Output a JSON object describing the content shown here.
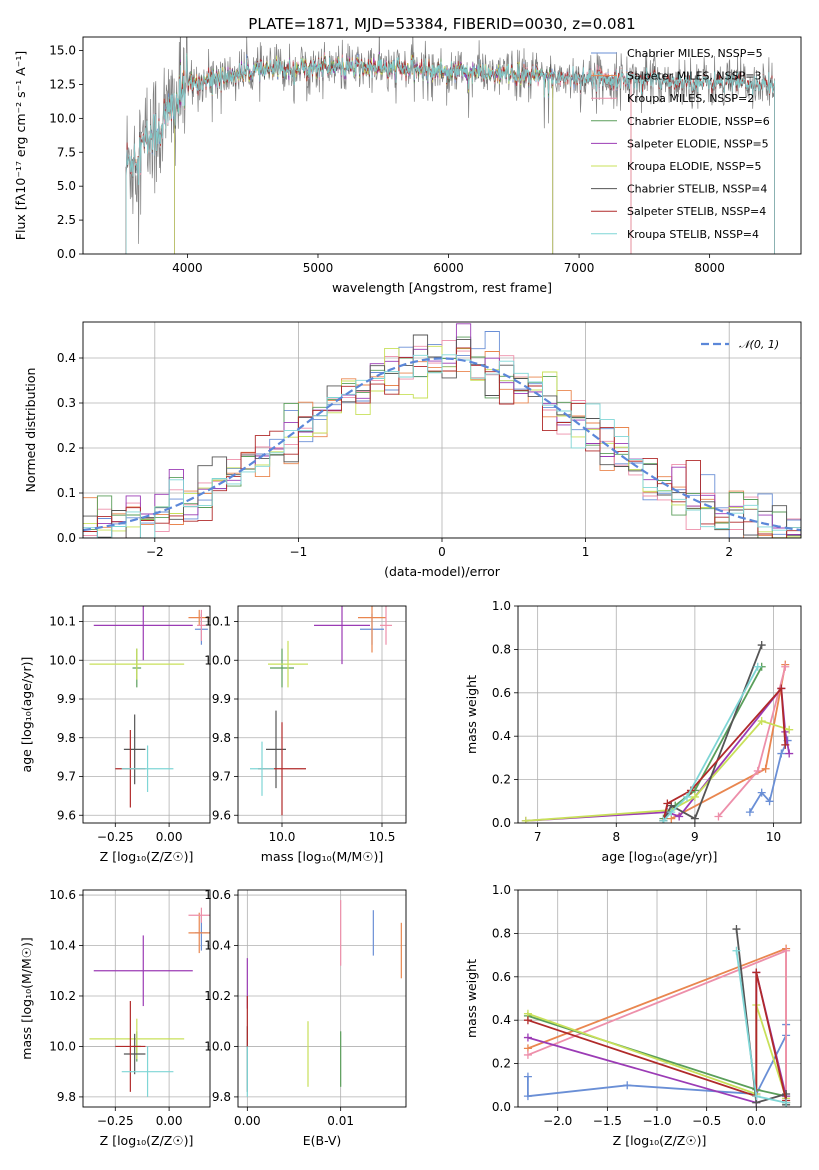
{
  "chart_data": [
    {
      "id": "spectrum",
      "type": "line",
      "title": "PLATE=1871, MJD=53384, FIBERID=0030, z=0.081",
      "xlabel": "wavelength [Angstrom, rest frame]",
      "ylabel": "Flux [f$_\\lambda$10$^{-17}$ erg cm$^{-2}$ s$^{-1}$ A$^{-1}$]",
      "ylabel_display": "Flux [fλ10⁻¹⁷ erg cm⁻² s⁻¹ A⁻¹]",
      "xlim": [
        3200,
        8700
      ],
      "ylim": [
        0,
        16
      ],
      "xticks": [
        4000,
        5000,
        6000,
        7000,
        8000
      ],
      "yticks": [
        0.0,
        2.5,
        5.0,
        7.5,
        10.0,
        12.5,
        15.0
      ],
      "grid": false,
      "legend_position": "right",
      "series": [
        {
          "name": "Chabrier MILES, N$_{SSP}$=5",
          "display": "Chabrier MILES, NSSP=5",
          "color": "#6a8fd6",
          "wmin": 3530,
          "wmax": 7400
        },
        {
          "name": "Salpeter MILES, N$_{SSP}$=3",
          "display": "Salpeter MILES, NSSP=3",
          "color": "#e9864f",
          "wmin": 3530,
          "wmax": 7400
        },
        {
          "name": "Kroupa MILES, N$_{SSP}$=2",
          "display": "Kroupa MILES, NSSP=2",
          "color": "#ed8faa",
          "wmin": 3530,
          "wmax": 7400
        },
        {
          "name": "Chabrier ELODIE, N$_{SSP}$=6",
          "display": "Chabrier ELODIE, NSSP=6",
          "color": "#5a9e5a",
          "wmin": 3900,
          "wmax": 6800
        },
        {
          "name": "Salpeter ELODIE, N$_{SSP}$=5",
          "display": "Salpeter ELODIE, NSSP=5",
          "color": "#9b3bb5",
          "wmin": 3900,
          "wmax": 6800
        },
        {
          "name": "Kroupa ELODIE, N$_{SSP}$=5",
          "display": "Kroupa ELODIE, NSSP=5",
          "color": "#c8e05a",
          "wmin": 3900,
          "wmax": 6800
        },
        {
          "name": "Chabrier STELIB, N$_{SSP}$=4",
          "display": "Chabrier STELIB, NSSP=4",
          "color": "#555555",
          "wmin": 3500,
          "wmax": 8500
        },
        {
          "name": "Salpeter STELIB, N$_{SSP}$=4",
          "display": "Salpeter STELIB, NSSP=4",
          "color": "#b02a2a",
          "wmin": 3500,
          "wmax": 8500
        },
        {
          "name": "Kroupa STELIB, N$_{SSP}$=4",
          "display": "Kroupa STELIB, NSSP=4",
          "color": "#7fd6d6",
          "wmin": 3500,
          "wmax": 8500
        }
      ],
      "data_color": "#808080",
      "continuum": {
        "x": [
          3530,
          3800,
          4000,
          4500,
          5000,
          5500,
          6000,
          6500,
          7000,
          7400,
          8500
        ],
        "y": [
          6.5,
          9.5,
          12.5,
          13.5,
          13.8,
          13.7,
          13.5,
          13.2,
          13.0,
          12.9,
          12.5
        ]
      }
    },
    {
      "id": "residuals",
      "type": "line",
      "xlabel": "(data-model)/error",
      "ylabel": "Normed distribution",
      "xlim": [
        -2.5,
        2.5
      ],
      "ylim": [
        0,
        0.48
      ],
      "xticks": [
        -2,
        -1,
        0,
        1,
        2
      ],
      "yticks": [
        0.0,
        0.1,
        0.2,
        0.3,
        0.4
      ],
      "grid": true,
      "legend": "$\\mathcal{N}(0,1)$",
      "legend_display": "𝒩(0, 1)",
      "legend_position": "top-right",
      "gauss_color": "#5b87d9",
      "bin_width": 0.1
    },
    {
      "id": "age-vs-Z",
      "type": "scatter",
      "xlabel": "Z [log$_{10}$(Z/Z$_\\odot$)]",
      "xlabel_display": "Z [log₁₀(Z/Z☉)]",
      "ylabel": "age  [log$_{10}$(age/yr)]",
      "ylabel_display": "age  [log₁₀(age/yr)]",
      "xlim": [
        -0.4,
        0.19
      ],
      "ylim": [
        9.58,
        10.14
      ],
      "xticks": [
        -0.25,
        0.0
      ],
      "xticklabels": [
        "−0.25",
        "0.00"
      ],
      "yticks": [
        9.6,
        9.7,
        9.8,
        9.9,
        10.0,
        10.1
      ],
      "grid": true,
      "points": [
        {
          "color": "#6a8fd6",
          "x": 0.15,
          "xerr": 0.03,
          "y": 10.08,
          "yerr": 0.04
        },
        {
          "color": "#e9864f",
          "x": 0.14,
          "xerr": 0.05,
          "y": 10.11,
          "yerr": 0.02
        },
        {
          "color": "#ed8faa",
          "x": 0.15,
          "xerr": 0.02,
          "y": 10.09,
          "yerr": 0.04
        },
        {
          "color": "#5a9e5a",
          "x": -0.15,
          "xerr": 0.02,
          "y": 9.98,
          "yerr": 0.05
        },
        {
          "color": "#9b3bb5",
          "x": -0.12,
          "xerr": 0.23,
          "y": 10.09,
          "yerr": 0.09
        },
        {
          "color": "#c8e05a",
          "x": -0.15,
          "xerr": 0.22,
          "y": 9.99,
          "yerr": 0.04
        },
        {
          "color": "#555555",
          "x": -0.16,
          "xerr": 0.05,
          "y": 9.77,
          "yerr": 0.09
        },
        {
          "color": "#b02a2a",
          "x": -0.18,
          "xerr": 0.07,
          "y": 9.72,
          "yerr": 0.1
        },
        {
          "color": "#7fd6d6",
          "x": -0.1,
          "xerr": 0.12,
          "y": 9.72,
          "yerr": 0.06
        }
      ]
    },
    {
      "id": "age-vs-mass",
      "type": "scatter",
      "xlabel": "mass [log$_{10}$(M/M$_\\odot$)]",
      "xlabel_display": "mass [log₁₀(M/M☉)]",
      "xlim": [
        9.78,
        10.62
      ],
      "ylim": [
        9.58,
        10.14
      ],
      "xticks": [
        10.0,
        10.5
      ],
      "xticklabels": [
        "10.0",
        "10.5"
      ],
      "yticks": [
        9.6,
        9.7,
        9.8,
        9.9,
        10.0,
        10.1
      ],
      "grid": true,
      "points": [
        {
          "color": "#6a8fd6",
          "x": 10.45,
          "xerr": 0.06,
          "y": 10.08,
          "yerr": 0.04
        },
        {
          "color": "#e9864f",
          "x": 10.45,
          "xerr": 0.07,
          "y": 10.11,
          "yerr": 0.09
        },
        {
          "color": "#ed8faa",
          "x": 10.52,
          "xerr": 0.03,
          "y": 10.09,
          "yerr": 0.05
        },
        {
          "color": "#5a9e5a",
          "x": 10.0,
          "xerr": 0.06,
          "y": 9.98,
          "yerr": 0.05
        },
        {
          "color": "#9b3bb5",
          "x": 10.3,
          "xerr": 0.14,
          "y": 10.09,
          "yerr": 0.1
        },
        {
          "color": "#c8e05a",
          "x": 10.03,
          "xerr": 0.1,
          "y": 9.99,
          "yerr": 0.06
        },
        {
          "color": "#555555",
          "x": 9.97,
          "xerr": 0.05,
          "y": 9.77,
          "yerr": 0.1
        },
        {
          "color": "#b02a2a",
          "x": 10.0,
          "xerr": 0.12,
          "y": 9.72,
          "yerr": 0.12
        },
        {
          "color": "#7fd6d6",
          "x": 9.9,
          "xerr": 0.06,
          "y": 9.72,
          "yerr": 0.07
        }
      ]
    },
    {
      "id": "massweight-vs-age",
      "type": "line",
      "xlabel": "age  [log$_{10}$(age/yr)]",
      "xlabel_display": "age  [log₁₀(age/yr)]",
      "ylabel": "mass weight",
      "xlim": [
        6.75,
        10.35
      ],
      "ylim": [
        0,
        1.0
      ],
      "xticks": [
        7,
        8,
        9,
        10
      ],
      "yticks": [
        0.0,
        0.2,
        0.4,
        0.6,
        0.8,
        1.0
      ],
      "grid": true,
      "series": [
        {
          "color": "#6a8fd6",
          "x": [
            9.7,
            9.85,
            9.95,
            10.1,
            10.18
          ],
          "y": [
            0.05,
            0.14,
            0.1,
            0.32,
            0.38
          ]
        },
        {
          "color": "#e9864f",
          "x": [
            8.7,
            9.9,
            10.15
          ],
          "y": [
            0.02,
            0.25,
            0.73
          ]
        },
        {
          "color": "#ed8faa",
          "x": [
            9.3,
            9.8,
            10.15
          ],
          "y": [
            0.03,
            0.24,
            0.72
          ]
        },
        {
          "color": "#5a9e5a",
          "x": [
            8.6,
            8.75,
            9.0,
            9.85
          ],
          "y": [
            0.02,
            0.08,
            0.15,
            0.72
          ]
        },
        {
          "color": "#9b3bb5",
          "x": [
            6.85,
            8.65,
            8.8,
            10.1,
            10.15,
            10.2
          ],
          "y": [
            0.01,
            0.05,
            0.03,
            0.62,
            0.42,
            0.32
          ]
        },
        {
          "color": "#c8e05a",
          "x": [
            6.85,
            8.7,
            9.0,
            9.85,
            10.2
          ],
          "y": [
            0.01,
            0.06,
            0.12,
            0.47,
            0.43
          ]
        },
        {
          "color": "#555555",
          "x": [
            8.6,
            8.7,
            9.0,
            9.85
          ],
          "y": [
            0.01,
            0.08,
            0.02,
            0.82
          ]
        },
        {
          "color": "#b02a2a",
          "x": [
            8.6,
            8.65,
            8.95,
            10.1,
            10.15
          ],
          "y": [
            0.01,
            0.09,
            0.15,
            0.62,
            0.36
          ]
        },
        {
          "color": "#7fd6d6",
          "x": [
            8.6,
            8.7,
            8.9,
            9.8
          ],
          "y": [
            0.01,
            0.05,
            0.12,
            0.72
          ]
        }
      ]
    },
    {
      "id": "mass-vs-Z",
      "type": "scatter",
      "xlabel": "Z [log$_{10}$(Z/Z$_\\odot$)]",
      "xlabel_display": "Z [log₁₀(Z/Z☉)]",
      "ylabel": "mass [log$_{10}$(M/M$_\\odot$)]",
      "ylabel_display": "mass [log₁₀(M/M☉)]",
      "xlim": [
        -0.4,
        0.19
      ],
      "ylim": [
        9.76,
        10.62
      ],
      "xticks": [
        -0.25,
        0.0
      ],
      "xticklabels": [
        "−0.25",
        "0.00"
      ],
      "yticks": [
        9.8,
        10.0,
        10.2,
        10.4,
        10.6
      ],
      "grid": true,
      "points": [
        {
          "color": "#6a8fd6",
          "x": 0.15,
          "xerr": 0.03,
          "y": 10.45,
          "yerr": 0.07
        },
        {
          "color": "#e9864f",
          "x": 0.14,
          "xerr": 0.05,
          "y": 10.45,
          "yerr": 0.08
        },
        {
          "color": "#ed8faa",
          "x": 0.15,
          "xerr": 0.06,
          "y": 10.52,
          "yerr": 0.03
        },
        {
          "color": "#5a9e5a",
          "x": -0.15,
          "xerr": 0.02,
          "y": 10.0,
          "yerr": 0.06
        },
        {
          "color": "#9b3bb5",
          "x": -0.12,
          "xerr": 0.23,
          "y": 10.3,
          "yerr": 0.14
        },
        {
          "color": "#c8e05a",
          "x": -0.15,
          "xerr": 0.22,
          "y": 10.03,
          "yerr": 0.08
        },
        {
          "color": "#555555",
          "x": -0.16,
          "xerr": 0.05,
          "y": 9.97,
          "yerr": 0.08
        },
        {
          "color": "#b02a2a",
          "x": -0.18,
          "xerr": 0.07,
          "y": 10.0,
          "yerr": 0.18
        },
        {
          "color": "#7fd6d6",
          "x": -0.1,
          "xerr": 0.12,
          "y": 9.9,
          "yerr": 0.1
        }
      ]
    },
    {
      "id": "mass-vs-ebv",
      "type": "scatter",
      "xlabel": "E(B-V)",
      "xlim": [
        -0.001,
        0.017
      ],
      "ylim": [
        9.76,
        10.62
      ],
      "xticks": [
        0.0,
        0.01
      ],
      "xticklabels": [
        "0.00",
        "0.01"
      ],
      "yticks": [
        9.8,
        10.0,
        10.2,
        10.4,
        10.6
      ],
      "grid": true,
      "points": [
        {
          "color": "#6a8fd6",
          "x": 0.0135,
          "y": 10.45,
          "yerr": 0.09
        },
        {
          "color": "#e9864f",
          "x": 0.0165,
          "y": 10.38,
          "yerr": 0.11
        },
        {
          "color": "#ed8faa",
          "x": 0.01,
          "y": 10.45,
          "yerr": 0.13
        },
        {
          "color": "#5a9e5a",
          "x": 0.01,
          "y": 9.95,
          "yerr": 0.11
        },
        {
          "color": "#9b3bb5",
          "x": 0.0,
          "y": 10.25,
          "yerr": 0.1
        },
        {
          "color": "#c8e05a",
          "x": 0.0065,
          "y": 9.97,
          "yerr": 0.13
        },
        {
          "color": "#555555",
          "x": 0.0,
          "y": 9.95,
          "yerr": 0.13
        },
        {
          "color": "#b02a2a",
          "x": 0.0,
          "y": 10.1,
          "yerr": 0.1
        },
        {
          "color": "#7fd6d6",
          "x": 0.0,
          "y": 9.9,
          "yerr": 0.1
        }
      ]
    },
    {
      "id": "massweight-vs-Z",
      "type": "line",
      "xlabel": "Z [log$_{10}$(Z/Z$_\\odot$)]",
      "xlabel_display": "Z [log₁₀(Z/Z☉)]",
      "ylabel": "mass weight",
      "xlim": [
        -2.4,
        0.45
      ],
      "ylim": [
        0,
        1.0
      ],
      "xticks": [
        -2.0,
        -1.5,
        -1.0,
        -0.5,
        0.0
      ],
      "xticklabels": [
        "−2.0",
        "−1.5",
        "−1.0",
        "−0.5",
        "0.0"
      ],
      "yticks": [
        0.0,
        0.2,
        0.4,
        0.6,
        0.8,
        1.0
      ],
      "grid": true,
      "series": [
        {
          "color": "#6a8fd6",
          "x": [
            -2.3,
            -2.3,
            -1.3,
            0.0,
            0.3,
            0.3
          ],
          "y": [
            0.14,
            0.05,
            0.1,
            0.06,
            0.33,
            0.38
          ]
        },
        {
          "color": "#e9864f",
          "x": [
            -2.3,
            0.3,
            0.3
          ],
          "y": [
            0.27,
            0.73,
            0.02
          ]
        },
        {
          "color": "#ed8faa",
          "x": [
            -2.3,
            0.3,
            0.3
          ],
          "y": [
            0.24,
            0.72,
            0.03
          ]
        },
        {
          "color": "#5a9e5a",
          "x": [
            -2.3,
            0.0,
            0.3,
            0.3
          ],
          "y": [
            0.42,
            0.08,
            0.05,
            0.02
          ]
        },
        {
          "color": "#9b3bb5",
          "x": [
            -2.3,
            0.0,
            0.0,
            0.3
          ],
          "y": [
            0.32,
            0.02,
            0.62,
            0.05
          ]
        },
        {
          "color": "#c8e05a",
          "x": [
            -2.3,
            0.0,
            0.0,
            0.3
          ],
          "y": [
            0.43,
            0.06,
            0.47,
            0.04
          ]
        },
        {
          "color": "#555555",
          "x": [
            -0.2,
            0.0,
            0.3,
            0.3
          ],
          "y": [
            0.82,
            0.02,
            0.06,
            0.01
          ]
        },
        {
          "color": "#b02a2a",
          "x": [
            -2.3,
            0.0,
            0.0,
            0.3
          ],
          "y": [
            0.4,
            0.05,
            0.62,
            0.03
          ]
        },
        {
          "color": "#7fd6d6",
          "x": [
            -0.2,
            0.0,
            0.3
          ],
          "y": [
            0.72,
            0.05,
            0.02
          ]
        }
      ]
    }
  ]
}
